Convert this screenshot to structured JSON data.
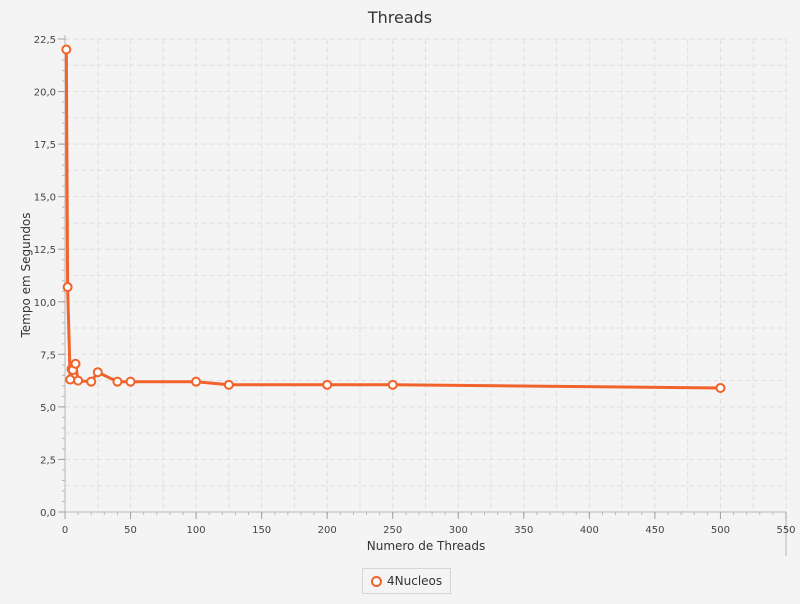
{
  "chart_data": {
    "type": "line",
    "title": "Threads",
    "xlabel": "Numero de Threads",
    "ylabel": "Tempo em Segundos",
    "xlim": [
      0,
      550
    ],
    "ylim": [
      0,
      22.5
    ],
    "x_ticks": [
      0,
      50,
      100,
      150,
      200,
      250,
      300,
      350,
      400,
      450,
      500,
      550
    ],
    "x_tick_labels": [
      "0",
      "50",
      "100",
      "150",
      "200",
      "250",
      "300",
      "350",
      "400",
      "450",
      "500",
      "550"
    ],
    "y_ticks": [
      0,
      2.5,
      5,
      7.5,
      10,
      12.5,
      15,
      17.5,
      20,
      22.5
    ],
    "y_tick_labels": [
      "0,0",
      "2,5",
      "5,0",
      "7,5",
      "10,0",
      "12,5",
      "15,0",
      "17,5",
      "20,0",
      "22,5"
    ],
    "grid": true,
    "legend_position": "bottom-center",
    "series": [
      {
        "name": "4Nucleos",
        "color": "#f2632b",
        "x": [
          1,
          2,
          4,
          5,
          6,
          8,
          10,
          20,
          25,
          40,
          50,
          100,
          125,
          200,
          250,
          500
        ],
        "y": [
          22.0,
          10.7,
          6.3,
          6.8,
          6.75,
          7.05,
          6.25,
          6.2,
          6.65,
          6.2,
          6.2,
          6.2,
          6.05,
          6.05,
          6.05,
          5.9
        ]
      }
    ]
  }
}
